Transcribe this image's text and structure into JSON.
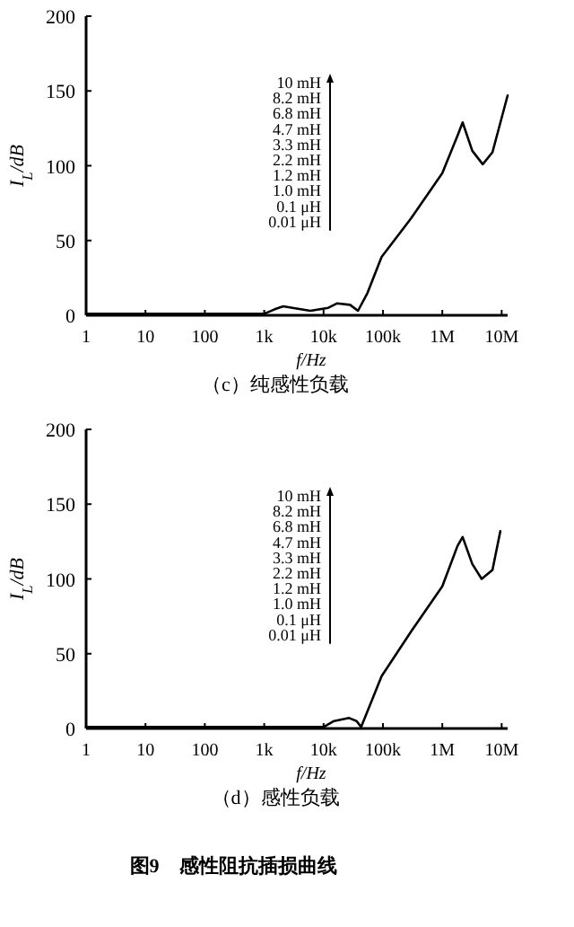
{
  "chart_data": [
    {
      "type": "line",
      "title": "（c）纯感性负载",
      "xlabel": "f/Hz",
      "ylabel": "I$_{L}$/dB",
      "log": "x",
      "xlim": [
        1,
        12600000
      ],
      "ylim": [
        0,
        200
      ],
      "xticks": [
        1,
        10,
        100,
        {
          "value": 1000,
          "label": "1k"
        },
        {
          "value": 10000,
          "label": "10k"
        },
        {
          "value": 100000,
          "label": "100k"
        },
        {
          "value": 1000000,
          "label": "1M"
        },
        {
          "value": 10000000,
          "label": "10M"
        }
      ],
      "yticks": [
        0,
        50,
        100,
        150,
        200
      ],
      "grid": false,
      "marker": "none",
      "line_style": "solid",
      "annotations": [
        "10 mH",
        "8.2 mH",
        "6.8 mH",
        "4.7 mH",
        "3.3 mH",
        "2.2 mH",
        "1.2 mH",
        "1.0 mH",
        "0.1 μH",
        "0.01 μH"
      ],
      "series": [
        {
          "color": "#000000",
          "x": [
            1,
            10,
            100,
            1000,
            1500,
            2100,
            3000,
            6000,
            12000,
            17000,
            28000,
            38000,
            55000,
            95000,
            300000,
            1000000,
            1800000,
            2200000,
            3200000,
            4800000,
            7000000,
            12600000
          ],
          "values": [
            1,
            1,
            1,
            1,
            4,
            6,
            5,
            3,
            5,
            8,
            7,
            3,
            15,
            39,
            65,
            95,
            120,
            129,
            110,
            101,
            109,
            147
          ]
        }
      ]
    },
    {
      "type": "line",
      "title": "（d）感性负载",
      "subtitle": "图9　感性阻抗插损曲线",
      "xlabel": "f/Hz",
      "ylabel": "I$_{L}$/dB",
      "log": "x",
      "xlim": [
        1,
        12600000
      ],
      "ylim": [
        0,
        200
      ],
      "xticks": [
        1,
        10,
        100,
        {
          "value": 1000,
          "label": "1k"
        },
        {
          "value": 10000,
          "label": "10k"
        },
        {
          "value": 100000,
          "label": "100k"
        },
        {
          "value": 1000000,
          "label": "1M"
        },
        {
          "value": 10000000,
          "label": "10M"
        }
      ],
      "yticks": [
        0,
        50,
        100,
        150,
        200
      ],
      "grid": false,
      "marker": "none",
      "line_style": "solid",
      "annotations": [
        "10 mH",
        "8.2 mH",
        "6.8 mH",
        "4.7 mH",
        "3.3 mH",
        "2.2 mH",
        "1.2 mH",
        "1.0 mH",
        "0.1 μH",
        "0.01 μH"
      ],
      "series": [
        {
          "color": "#000000",
          "x": [
            1,
            10,
            100,
            1000,
            10000,
            15000,
            27000,
            36000,
            43000,
            95000,
            300000,
            1000000,
            1800000,
            2200000,
            3200000,
            4600000,
            7000000,
            9500000
          ],
          "values": [
            1,
            1,
            1,
            1,
            1,
            5,
            7,
            5,
            1,
            35,
            65,
            95,
            122,
            128,
            110,
            100,
            106,
            132
          ]
        }
      ]
    }
  ]
}
